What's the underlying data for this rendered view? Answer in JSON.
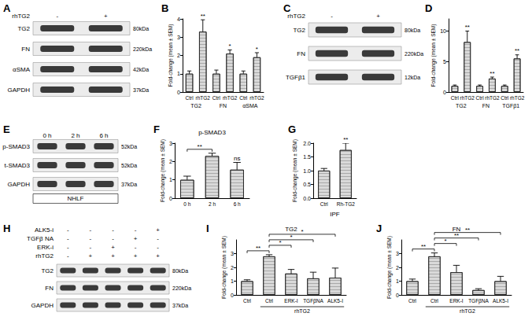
{
  "chart_data": [
    {
      "type": "bar",
      "panel_label": "B",
      "y_label": "Fold-change (mean ± SEM)",
      "categories": [
        "Ctrl",
        "rhTG2",
        "Ctrl",
        "rhTG2",
        "Ctrl",
        "rhTG2"
      ],
      "values": [
        1,
        3.3,
        1,
        2.1,
        1,
        1.9
      ],
      "errors": [
        0.15,
        0.65,
        0.2,
        0.2,
        0.15,
        0.25
      ],
      "groups": [
        {
          "label": "TG2",
          "from": 0,
          "to": 1
        },
        {
          "label": "FN",
          "from": 2,
          "to": 3
        },
        {
          "label": "αSMA",
          "from": 4,
          "to": 5
        }
      ],
      "significance": [
        {
          "text": "**",
          "index": 1
        },
        {
          "text": "*",
          "index": 3
        },
        {
          "text": "*",
          "index": 5
        }
      ],
      "ylim": [
        0,
        4
      ],
      "yticks": [
        0,
        1,
        2,
        3,
        4
      ],
      "color": "#d9d9d9",
      "grid": false
    },
    {
      "type": "bar",
      "panel_label": "D",
      "y_label": "Fold-change (mean ± SEM)",
      "categories": [
        "Ctrl",
        "rhTG2",
        "Ctrl",
        "rhTG2",
        "Ctrl",
        "rhTG2"
      ],
      "values": [
        1,
        8.2,
        1,
        2.2,
        1,
        5.5
      ],
      "errors": [
        0.15,
        1.8,
        0.15,
        0.25,
        0.15,
        0.6
      ],
      "groups": [
        {
          "label": "TG2",
          "from": 0,
          "to": 1
        },
        {
          "label": "FN",
          "from": 2,
          "to": 3
        },
        {
          "label": "TGFβ1",
          "from": 4,
          "to": 5
        }
      ],
      "significance": [
        {
          "text": "**",
          "index": 1
        },
        {
          "text": "**",
          "index": 3
        },
        {
          "text": "**",
          "index": 5
        }
      ],
      "ylim": [
        0,
        12
      ],
      "yticks": [
        0,
        5,
        10
      ],
      "color": "#d9d9d9",
      "grid": false
    },
    {
      "type": "bar",
      "panel_label": "F",
      "title": "p-SMAD3",
      "y_label": "Fold-change (mean ± SEM)",
      "categories": [
        "0 h",
        "2 h",
        "6 h"
      ],
      "values": [
        1,
        2.3,
        1.55
      ],
      "errors": [
        0.2,
        0.15,
        0.4
      ],
      "significance": [
        {
          "text": "**",
          "from": 0,
          "to": 1
        },
        {
          "text": "ns",
          "index": 2
        }
      ],
      "ylim": [
        0,
        3
      ],
      "yticks": [
        0,
        1,
        2,
        3
      ],
      "color": "#d9d9d9",
      "grid": false
    },
    {
      "type": "bar",
      "panel_label": "G",
      "y_label": "Fold-change (mean ± SEM)",
      "x_label": "IPF",
      "categories": [
        "Ctrl",
        "Rh-TG2"
      ],
      "values": [
        1,
        1.75
      ],
      "errors": [
        0.08,
        0.25
      ],
      "significance": [
        {
          "text": "**",
          "index": 1
        }
      ],
      "ylim": [
        0,
        2
      ],
      "yticks": [
        {
          "value": 0,
          "label": "0.0"
        },
        {
          "value": 0.5,
          "label": "0.5"
        },
        {
          "value": 1,
          "label": "1.0"
        },
        {
          "value": 1.5,
          "label": "1.5"
        },
        {
          "value": 2,
          "label": "2.0"
        }
      ],
      "color": "#d9d9d9",
      "grid": false
    },
    {
      "type": "bar",
      "panel_label": "I",
      "title": "TG2",
      "y_label": "Fold-change (mean ± SEM)",
      "categories": [
        "Ctrl",
        "Ctrl",
        "ERK-I",
        "TGFβNA",
        "ALK5-I"
      ],
      "values": [
        1,
        2.8,
        1.55,
        1.2,
        1.25
      ],
      "errors": [
        0.1,
        0.12,
        0.3,
        0.45,
        0.7
      ],
      "groups": [
        {
          "label": "rhTG2",
          "from": 1,
          "to": 4
        }
      ],
      "significance": [
        {
          "text": "**",
          "from": 0,
          "to": 1
        },
        {
          "text": "*",
          "from": 1,
          "to": 2
        },
        {
          "text": "*",
          "from": 1,
          "to": 3
        },
        {
          "text": "*",
          "from": 1,
          "to": 4
        }
      ],
      "ylim": [
        0,
        4
      ],
      "yticks": [
        0,
        1,
        2,
        3
      ],
      "color": "#d9d9d9",
      "grid": false
    },
    {
      "type": "bar",
      "panel_label": "J",
      "title": "FN",
      "y_label": "Fold-change (mean ± SEM)",
      "categories": [
        "Ctrl",
        "Ctrl",
        "ERK-I",
        "TGFβNA",
        "ALK5-I"
      ],
      "values": [
        1,
        2.8,
        1.65,
        0.35,
        1.0
      ],
      "errors": [
        0.15,
        0.25,
        0.5,
        0.1,
        0.35
      ],
      "groups": [
        {
          "label": "rhTG2",
          "from": 1,
          "to": 4
        }
      ],
      "significance": [
        {
          "text": "**",
          "from": 0,
          "to": 1
        },
        {
          "text": "*",
          "from": 1,
          "to": 2
        },
        {
          "text": "**",
          "from": 1,
          "to": 3
        },
        {
          "text": "**",
          "from": 1,
          "to": 4
        }
      ],
      "ylim": [
        0,
        4
      ],
      "yticks": [
        0,
        1,
        2,
        3
      ],
      "color": "#d9d9d9",
      "grid": false
    }
  ],
  "blots": [
    {
      "panel_label": "A",
      "lane_rows": [
        {
          "label": "rhTG2",
          "marks": [
            "-",
            "+"
          ]
        }
      ],
      "bands": [
        {
          "label": "TG2",
          "size": "80kDa"
        },
        {
          "label": "FN",
          "size": "220kDa"
        },
        {
          "label": "αSMA",
          "size": "42kDa"
        },
        {
          "label": "GAPDH",
          "size": "37kDa"
        }
      ]
    },
    {
      "panel_label": "C",
      "lane_rows": [
        {
          "label": "rhTG2",
          "marks": [
            "-",
            "+"
          ]
        }
      ],
      "bands": [
        {
          "label": "TG2",
          "size": "80kDa"
        },
        {
          "label": "FN",
          "size": "220kDa"
        },
        {
          "label": "TGFβ1",
          "size": "12kDa"
        }
      ]
    },
    {
      "panel_label": "E",
      "lane_rows": [
        {
          "marks": [
            "0 h",
            "2 h",
            "6 h"
          ]
        }
      ],
      "bands": [
        {
          "label": "p-SMAD3",
          "size": "52kDa"
        },
        {
          "label": "t-SMAD3",
          "size": "52kDa"
        },
        {
          "label": "GAPDH",
          "size": "37kDa"
        }
      ],
      "caption": "NHLF"
    },
    {
      "panel_label": "H",
      "lane_rows": [
        {
          "label": "ALK5-i",
          "marks": [
            "-",
            "-",
            "-",
            "-",
            "+"
          ]
        },
        {
          "label": "TGFβ NA",
          "marks": [
            "-",
            "-",
            "-",
            "+",
            "-"
          ]
        },
        {
          "label": "ERK-i",
          "marks": [
            "-",
            "-",
            "+",
            "-",
            "-"
          ]
        },
        {
          "label": "rhTG2",
          "marks": [
            "-",
            "+",
            "+",
            "+",
            "+"
          ]
        }
      ],
      "bands": [
        {
          "label": "TG2",
          "size": "80kDa"
        },
        {
          "label": "FN",
          "size": "220kDa"
        },
        {
          "label": "GAPDH",
          "size": "37kDa"
        }
      ]
    }
  ]
}
